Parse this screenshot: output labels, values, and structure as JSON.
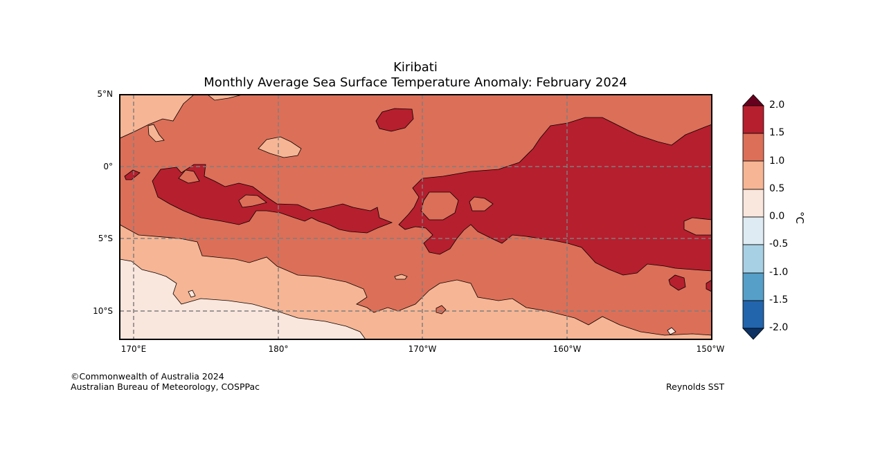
{
  "title": {
    "line1": "Kiribati",
    "line2": "Monthly Average Sea Surface Temperature Anomaly: February 2024"
  },
  "axes": {
    "lat_labels": [
      "5°N",
      "0°",
      "5°S",
      "10°S"
    ],
    "lon_labels": [
      "170°E",
      "180°",
      "170°W",
      "160°W",
      "150°W"
    ]
  },
  "colorbar": {
    "labels": [
      "2.0",
      "1.5",
      "1.0",
      "0.5",
      "0.0",
      "-0.5",
      "-1.0",
      "-1.5",
      "-2.0"
    ],
    "unit": "°C",
    "colors": {
      "over": "#67001f",
      "c1.5_2.0": "#b61f2e",
      "c1.0_1.5": "#dc6f58",
      "c0.5_1.0": "#f6b594",
      "c0.0_0.5": "#f9e6dd",
      "cm0.5_0.0": "#deebf2",
      "cm1.0_m0.5": "#a8d0e4",
      "cm1.5_m1.0": "#569fc9",
      "cm2.0_m1.5": "#2265ad",
      "under": "#0d3263"
    }
  },
  "footer": {
    "copyright": "©Commonwealth of Australia 2024",
    "org": "Australian Bureau of Meteorology, COSPPac",
    "source": "Reynolds SST"
  }
}
